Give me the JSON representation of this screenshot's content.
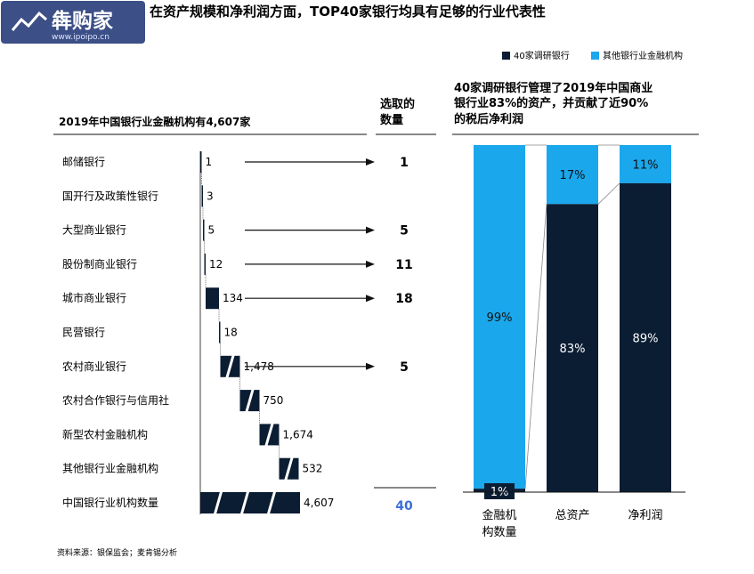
{
  "logo": {
    "text": "犇购家",
    "subtext": "www.ipoipo.cn"
  },
  "title": "在资产规模和净利润方面，TOP40家银行均具有足够的行业代表性",
  "legend": {
    "items": [
      {
        "label": "40家调研银行",
        "color": "#0b1d33"
      },
      {
        "label": "其他银行业金融机构",
        "color": "#1aa7ec"
      }
    ]
  },
  "left_header": "2019年中国银行业金融机构有4,607家",
  "mid_header": {
    "line1": "选取的",
    "line2": "数量"
  },
  "right_header": {
    "line1": "40家调研银行管理了2019年中国商业",
    "line2": "银行业83%的资产，并贡献了近90%",
    "line3": "的税后净利润"
  },
  "source": "资料来源：银保监会；麦肯锡分析",
  "chart_data": [
    {
      "type": "bar",
      "title": "2019年中国银行业金融机构有4,607家",
      "categories": [
        "邮储银行",
        "国开行及政策性银行",
        "大型商业银行",
        "股份制商业银行",
        "城市商业银行",
        "民营银行",
        "农村商业银行",
        "农村合作银行与信用社",
        "新型农村金融机构",
        "其他银行业金融机构",
        "中国银行业机构数量"
      ],
      "values": [
        1,
        3,
        5,
        12,
        134,
        18,
        1478,
        750,
        1674,
        532,
        4607
      ],
      "value_labels": [
        "1",
        "3",
        "5",
        "12",
        "134",
        "18",
        "1,478",
        "750",
        "1,674",
        "532",
        "4,607"
      ],
      "breaks": [
        false,
        false,
        false,
        false,
        false,
        false,
        true,
        true,
        true,
        true,
        true
      ],
      "selected": [
        "1",
        "",
        "5",
        "11",
        "18",
        "",
        "5",
        "",
        "",
        "",
        ""
      ],
      "selected_total": "40",
      "waterfall": true
    },
    {
      "type": "bar",
      "stacked": true,
      "categories": [
        "金融机构数量",
        "总资产",
        "净利润"
      ],
      "category_lines": [
        [
          "金融机",
          "构数量"
        ],
        [
          "总资产"
        ],
        [
          "净利润"
        ]
      ],
      "series": [
        {
          "name": "40家调研银行",
          "values": [
            1,
            83,
            89
          ],
          "labels": [
            "1%",
            "83%",
            "89%"
          ]
        },
        {
          "name": "其他银行业金融机构",
          "values": [
            99,
            17,
            11
          ],
          "labels": [
            "99%",
            "17%",
            "11%"
          ]
        }
      ],
      "ylim": [
        0,
        100
      ]
    }
  ]
}
